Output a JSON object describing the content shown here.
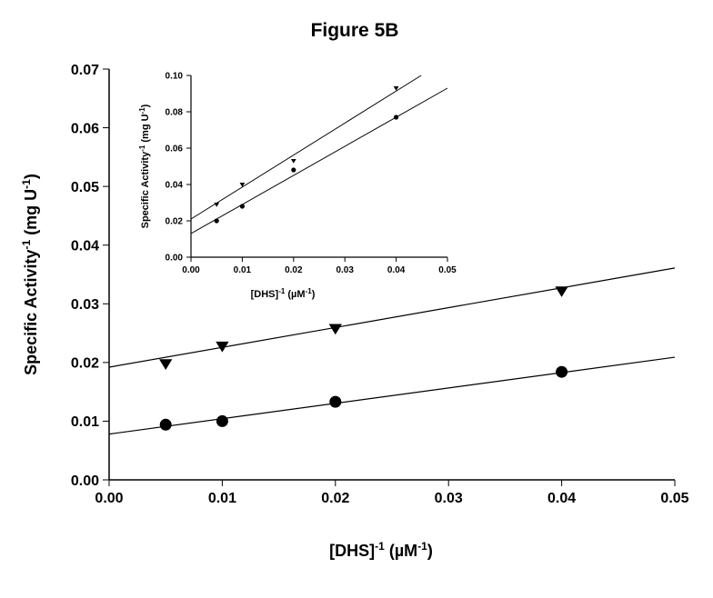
{
  "chart_data": [
    {
      "type": "scatter",
      "title": "Figure 5B",
      "xlabel": "[DHS]",
      "xlabel_sup": "-1",
      "xlabel_unit_pre": " (",
      "xlabel_unit": "µM",
      "xlabel_unit_sup": "-1",
      "xlabel_unit_post": ")",
      "ylabel": "Specific Activity",
      "ylabel_sup": "-1",
      "ylabel_unit_pre": " (mg U",
      "ylabel_unit_sup": "-1",
      "ylabel_unit_post": ")",
      "xlim": [
        0,
        0.05
      ],
      "ylim": [
        0,
        0.07
      ],
      "xticks": [
        "0.00",
        "0.01",
        "0.02",
        "0.03",
        "0.04",
        "0.05"
      ],
      "yticks": [
        "0.00",
        "0.01",
        "0.02",
        "0.03",
        "0.04",
        "0.05",
        "0.06",
        "0.07"
      ],
      "grid": false,
      "series": [
        {
          "marker": "triangle-down",
          "x": [
            0.005,
            0.01,
            0.02,
            0.04
          ],
          "y": [
            0.0198,
            0.0228,
            0.0258,
            0.0322
          ],
          "fit": {
            "intercept": 0.0192,
            "slope": 0.338
          }
        },
        {
          "marker": "circle",
          "x": [
            0.005,
            0.01,
            0.02,
            0.04
          ],
          "y": [
            0.0094,
            0.01,
            0.0133,
            0.0184
          ],
          "fit": {
            "intercept": 0.0078,
            "slope": 0.262
          }
        }
      ]
    },
    {
      "type": "scatter",
      "title": "",
      "inset": true,
      "xlabel": "[DHS]",
      "xlabel_sup": "-1",
      "xlabel_unit_pre": " (",
      "xlabel_unit": "µM",
      "xlabel_unit_sup": "-1",
      "xlabel_unit_post": ")",
      "ylabel": "Specific Activity",
      "ylabel_sup": "-1",
      "ylabel_unit_pre": " (mg U",
      "ylabel_unit_sup": "-1",
      "ylabel_unit_post": ")",
      "xlim": [
        0,
        0.05
      ],
      "ylim": [
        0,
        0.1
      ],
      "xticks": [
        "0.00",
        "0.01",
        "0.02",
        "0.03",
        "0.04",
        "0.05"
      ],
      "yticks": [
        "0.00",
        "0.02",
        "0.04",
        "0.06",
        "0.08",
        "0.10"
      ],
      "grid": false,
      "series": [
        {
          "marker": "triangle-down",
          "x": [
            0.005,
            0.01,
            0.02,
            0.04
          ],
          "y": [
            0.029,
            0.04,
            0.053,
            0.093
          ],
          "fit": {
            "intercept": 0.021,
            "slope": 1.76
          }
        },
        {
          "marker": "circle",
          "x": [
            0.005,
            0.01,
            0.02,
            0.04
          ],
          "y": [
            0.02,
            0.028,
            0.048,
            0.077
          ],
          "fit": {
            "intercept": 0.013,
            "slope": 1.6
          }
        }
      ]
    }
  ]
}
